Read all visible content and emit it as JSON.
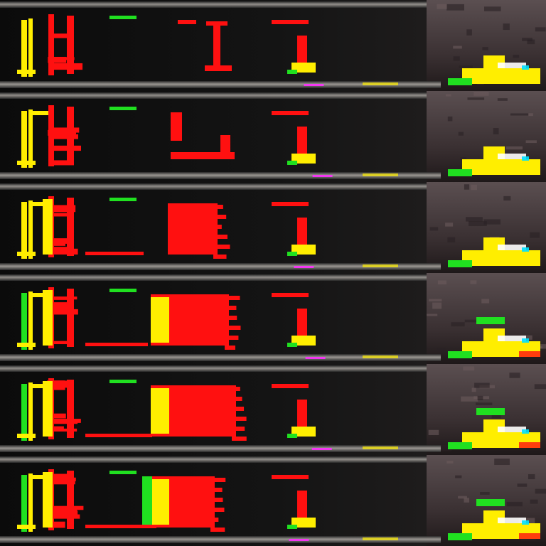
{
  "image": {
    "kind": "frame-strip",
    "frame_count": 6,
    "colors": {
      "background": "#050505",
      "band_dark": "#1a1a1a",
      "rail_light": "#a9a5a0",
      "rail_mid": "#6e6a66",
      "right_panel": "#4b3f41",
      "right_panel_dark": "#2e2628",
      "red": "#ff1010",
      "yellow": "#ffee00",
      "green": "#20e020",
      "magenta": "#ff30ff",
      "white": "#ffffff",
      "cyan": "#00e0ff"
    }
  }
}
